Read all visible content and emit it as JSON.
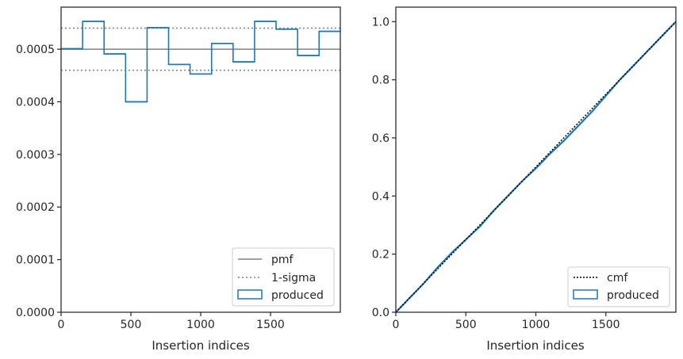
{
  "colors": {
    "produced": "#1f77b4",
    "pmf": "#808080",
    "sigma": "#808080",
    "cmf": "#000000",
    "axes": "#262626"
  },
  "chart_data": [
    {
      "type": "histogram-step",
      "xlabel": "Insertion indices",
      "ylabel": "",
      "xlim": [
        0,
        2000
      ],
      "ylim": [
        0,
        0.00058
      ],
      "xticks": [
        0,
        500,
        1000,
        1500
      ],
      "yticks": [
        0,
        0.0001,
        0.0002,
        0.0003,
        0.0004,
        0.0005
      ],
      "ytick_labels": [
        "0.0000",
        "0.0001",
        "0.0002",
        "0.0003",
        "0.0004",
        "0.0005"
      ],
      "xtick_labels": [
        "0",
        "500",
        "1000",
        "1500"
      ],
      "bin_edges": [
        0,
        154,
        308,
        462,
        616,
        770,
        924,
        1078,
        1232,
        1386,
        1540,
        1694,
        1848,
        2002
      ],
      "values": [
        0.000501,
        0.000553,
        0.000491,
        0.0004,
        0.000541,
        0.000471,
        0.000453,
        0.000511,
        0.000476,
        0.000553,
        0.000538,
        0.000488,
        0.000534
      ],
      "pmf": 0.0005,
      "sigma_upper": 0.00054,
      "sigma_lower": 0.00046,
      "legend": [
        "pmf",
        "1-sigma",
        "produced"
      ],
      "legend_position": "lower right"
    },
    {
      "type": "line",
      "xlabel": "Insertion indices",
      "ylabel": "",
      "xlim": [
        0,
        2000
      ],
      "ylim": [
        0,
        1.05
      ],
      "xticks": [
        0,
        500,
        1000,
        1500
      ],
      "yticks": [
        0,
        0.2,
        0.4,
        0.6,
        0.8,
        1.0
      ],
      "ytick_labels": [
        "0.0",
        "0.2",
        "0.4",
        "0.6",
        "0.8",
        "1.0"
      ],
      "xtick_labels": [
        "0",
        "500",
        "1000",
        "1500"
      ],
      "cmf": {
        "x": [
          0,
          2000
        ],
        "y": [
          0,
          1.0
        ]
      },
      "produced": {
        "x": [
          0,
          100,
          200,
          300,
          400,
          500,
          600,
          700,
          800,
          900,
          1000,
          1050,
          1100,
          1200,
          1300,
          1400,
          1500,
          1600,
          1700,
          1800,
          1900,
          2000
        ],
        "y": [
          0,
          0.05,
          0.1,
          0.155,
          0.205,
          0.25,
          0.295,
          0.35,
          0.4,
          0.45,
          0.495,
          0.52,
          0.545,
          0.59,
          0.64,
          0.69,
          0.745,
          0.8,
          0.85,
          0.9,
          0.95,
          1.0
        ]
      },
      "legend": [
        "cmf",
        "produced"
      ],
      "legend_position": "lower right"
    }
  ]
}
